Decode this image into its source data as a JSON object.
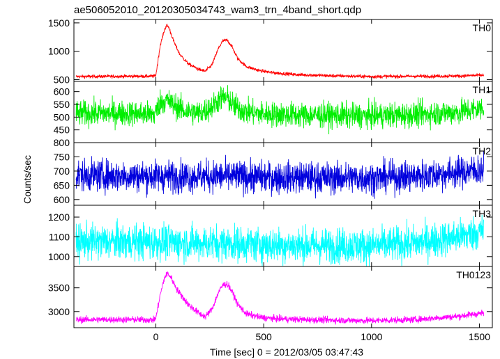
{
  "chart_data": {
    "type": "line",
    "title": "ae506052010_20120305034743_wam3_trn_4band_short.qdp",
    "xlabel": "Time [sec] 0 = 2012/03/05 03:47:43",
    "ylabel": "Counts/sec",
    "xlim": [
      -380,
      1560
    ],
    "xticks": [
      0,
      500,
      1000,
      1500
    ],
    "grid": false,
    "panels": [
      {
        "name": "TH0",
        "color": "#ff0000",
        "ylim": [
          470,
          1560
        ],
        "yticks": [
          500,
          1000,
          1500
        ],
        "noise": 15,
        "x": [
          -370,
          -100,
          -10,
          0,
          20,
          40,
          50,
          60,
          80,
          110,
          150,
          200,
          230,
          260,
          290,
          310,
          330,
          350,
          380,
          420,
          480,
          550,
          650,
          800,
          1000,
          1200,
          1400,
          1520
        ],
        "y": [
          555,
          560,
          560,
          580,
          1100,
          1380,
          1460,
          1420,
          1200,
          950,
          780,
          680,
          650,
          760,
          1050,
          1180,
          1200,
          1100,
          870,
          730,
          660,
          620,
          590,
          570,
          555,
          560,
          565,
          580
        ]
      },
      {
        "name": "TH1",
        "color": "#00ee00",
        "ylim": [
          400,
          640
        ],
        "yticks": [
          450,
          500,
          550,
          600
        ],
        "noise": 25,
        "x": [
          -370,
          -100,
          -10,
          0,
          20,
          50,
          80,
          130,
          200,
          260,
          300,
          330,
          360,
          420,
          500,
          700,
          1000,
          1200,
          1400,
          1520
        ],
        "y": [
          515,
          515,
          510,
          520,
          560,
          565,
          550,
          525,
          515,
          540,
          575,
          575,
          545,
          520,
          512,
          508,
          505,
          510,
          520,
          535
        ]
      },
      {
        "name": "TH2",
        "color": "#0000dd",
        "ylim": [
          580,
          800
        ],
        "yticks": [
          600,
          650,
          700,
          750,
          800
        ],
        "noise": 28,
        "x": [
          -370,
          0,
          100,
          300,
          500,
          800,
          1000,
          1200,
          1400,
          1520
        ],
        "y": [
          685,
          682,
          682,
          682,
          678,
          676,
          676,
          682,
          695,
          705
        ]
      },
      {
        "name": "TH3",
        "color": "#00ffff",
        "ylim": [
          950,
          1260
        ],
        "yticks": [
          1000,
          1100,
          1200
        ],
        "noise": 45,
        "x": [
          -370,
          0,
          100,
          300,
          500,
          800,
          1000,
          1200,
          1400,
          1520
        ],
        "y": [
          1075,
          1075,
          1070,
          1068,
          1060,
          1055,
          1055,
          1068,
          1100,
          1130
        ]
      },
      {
        "name": "TH0123",
        "color": "#ff00ff",
        "ylim": [
          2660,
          3950
        ],
        "yticks": [
          3000,
          3500
        ],
        "noise": 35,
        "x": [
          -370,
          -100,
          -10,
          0,
          20,
          40,
          55,
          70,
          100,
          150,
          200,
          230,
          260,
          290,
          310,
          330,
          350,
          380,
          420,
          480,
          550,
          650,
          800,
          1000,
          1200,
          1400,
          1520
        ],
        "y": [
          2830,
          2830,
          2825,
          2860,
          3350,
          3720,
          3800,
          3720,
          3450,
          3150,
          2960,
          2890,
          3050,
          3400,
          3560,
          3580,
          3450,
          3150,
          2950,
          2880,
          2850,
          2835,
          2820,
          2810,
          2830,
          2900,
          2970
        ]
      }
    ]
  }
}
